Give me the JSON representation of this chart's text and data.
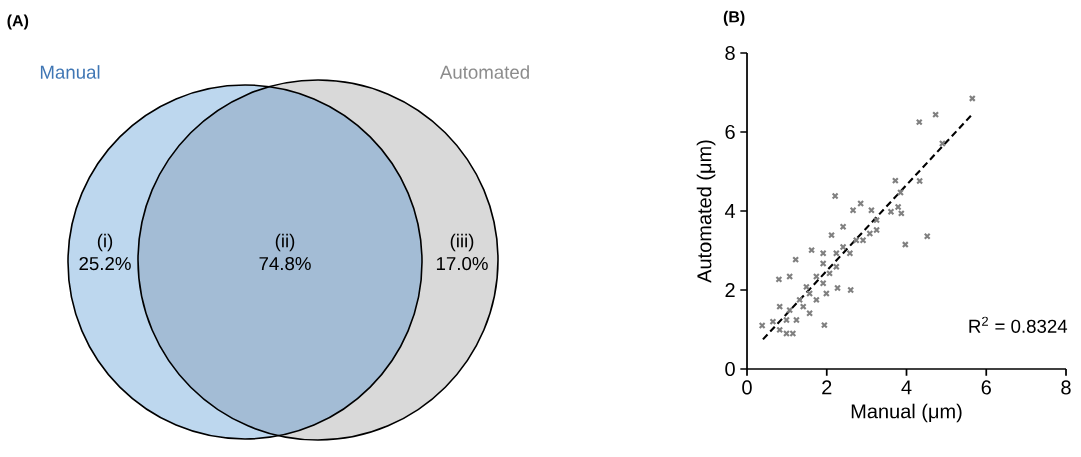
{
  "chart_data": [
    {
      "type": "other",
      "title": "(A)",
      "categories": [
        "(i)",
        "(ii)",
        "(iii)"
      ],
      "value_labels": [
        "25.2%",
        "74.8%",
        "17.0%"
      ],
      "colors": [
        "#bdd7ee",
        "#a3bcd5",
        "#d9d9d9"
      ],
      "annotations": [
        "Manual",
        "Automated"
      ]
    },
    {
      "type": "scatter",
      "title": "(B)",
      "xlabel": "Manual (μm)",
      "ylabel": "Automated (μm)",
      "xlim": [
        0,
        8
      ],
      "ylim": [
        0,
        8
      ],
      "xticks": [
        0,
        2,
        4,
        6,
        8
      ],
      "yticks": [
        0,
        2,
        4,
        6,
        8
      ],
      "annotations": [
        "R$^{2}$ = 0.8324"
      ],
      "series": [
        {
          "type": "scatter",
          "color": "#808080",
          "marker": "cross",
          "x": [
            5.65,
            4.32,
            4.73,
            4.9,
            3.72,
            4.33,
            3.85,
            3.61,
            3.79,
            3.87,
            3.97,
            4.52,
            2.21,
            2.6,
            2.27,
            1.94,
            0.38,
            0.8,
            1.22,
            1.62,
            1.07,
            0.82,
            0.99,
            0.65,
            1.99,
            2.85,
            2.66,
            3.12,
            3.25,
            2.41,
            2.12,
            2.91,
            3.25,
            2.58,
            2.24,
            1.91,
            1.74,
            1.49,
            1.32,
            1.07,
            1.24,
            1.57,
            1.74,
            2.07,
            2.41,
            2.74,
            3.08,
            1.57,
            1.91,
            0.82,
            1.15,
            1.41,
            0.99,
            2.24,
            1.91
          ],
          "values": [
            6.85,
            6.25,
            6.44,
            5.71,
            4.77,
            4.76,
            4.47,
            3.98,
            4.1,
            3.94,
            3.15,
            3.36,
            4.38,
            2.0,
            2.05,
            1.11,
            1.1,
            2.27,
            2.77,
            3.01,
            2.34,
            1.58,
            0.9,
            1.2,
            1.91,
            4.19,
            4.02,
            4.02,
            3.77,
            3.6,
            3.39,
            3.26,
            3.52,
            2.93,
            2.59,
            2.67,
            2.34,
            2.08,
            1.75,
            1.49,
            1.24,
            1.41,
            1.75,
            2.42,
            3.09,
            3.26,
            3.43,
            1.91,
            2.17,
            0.99,
            0.9,
            1.58,
            1.24,
            2.93,
            2.93
          ]
        },
        {
          "type": "line",
          "color": "#000000",
          "line_style": "dashed",
          "marker": "none",
          "x": [
            0.4,
            5.65
          ],
          "values": [
            0.75,
            6.45
          ]
        }
      ]
    }
  ]
}
